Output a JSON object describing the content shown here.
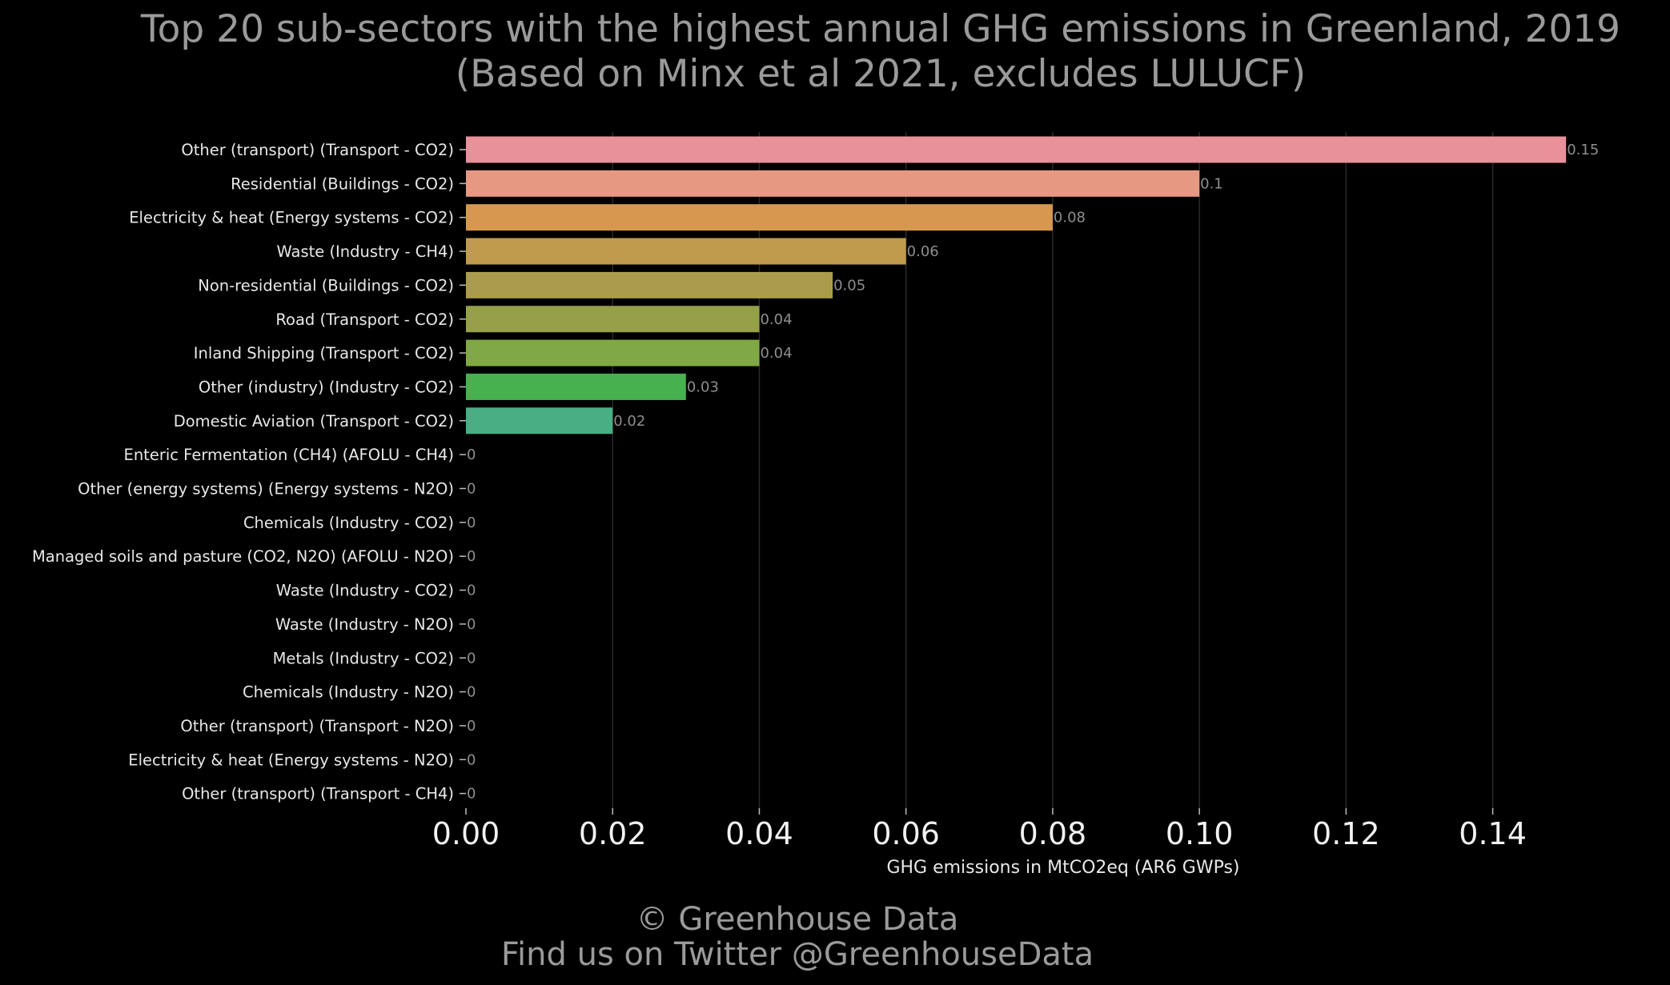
{
  "title_line1": "Top 20 sub-sectors with the highest annual GHG emissions in Greenland, 2019",
  "title_line2": "(Based on Minx et al 2021, excludes LULUCF)",
  "footer_line1": "© Greenhouse Data",
  "footer_line2": "Find us on Twitter @GreenhouseData",
  "chart_data": {
    "type": "bar",
    "orientation": "horizontal",
    "title": "Top 20 sub-sectors with the highest annual GHG emissions in Greenland, 2019 (Based on Minx et al 2021, excludes LULUCF)",
    "xlabel": "GHG emissions in MtCO2eq (AR6 GWPs)",
    "ylabel": "",
    "xlim": [
      0,
      0.155
    ],
    "grid": true,
    "x_ticks": [
      0,
      0.02,
      0.04,
      0.06,
      0.08,
      0.1,
      0.12,
      0.14
    ],
    "x_tick_labels": [
      "0.00",
      "0.02",
      "0.04",
      "0.06",
      "0.08",
      "0.10",
      "0.12",
      "0.14"
    ],
    "categories": [
      "Other (transport) (Transport - CO2)",
      "Residential (Buildings - CO2)",
      "Electricity & heat (Energy systems - CO2)",
      "Waste (Industry - CH4)",
      "Non-residential (Buildings - CO2)",
      "Road (Transport - CO2)",
      "Inland Shipping (Transport - CO2)",
      "Other (industry) (Industry - CO2)",
      "Domestic Aviation (Transport - CO2)",
      "Enteric Fermentation (CH4) (AFOLU - CH4)",
      "Other (energy systems) (Energy systems - N2O)",
      "Chemicals (Industry - CO2)",
      "Managed soils and pasture (CO2, N2O) (AFOLU - N2O)",
      "Waste (Industry - CO2)",
      "Waste (Industry - N2O)",
      "Metals (Industry - CO2)",
      "Chemicals (Industry - N2O)",
      "Other (transport) (Transport - N2O)",
      "Electricity & heat (Energy systems - N2O)",
      "Other (transport) (Transport - CH4)"
    ],
    "values": [
      0.15,
      0.1,
      0.08,
      0.06,
      0.05,
      0.04,
      0.04,
      0.03,
      0.02,
      0,
      0,
      0,
      0,
      0,
      0,
      0,
      0,
      0,
      0,
      0
    ],
    "value_labels": [
      "0.15",
      "0.1",
      "0.08",
      "0.06",
      "0.05",
      "0.04",
      "0.04",
      "0.03",
      "0.02",
      "0",
      "0",
      "0",
      "0",
      "0",
      "0",
      "0",
      "0",
      "0",
      "0",
      "0"
    ],
    "colors": [
      "#e8919b",
      "#e79883",
      "#d6984f",
      "#c19b4d",
      "#aa9c4a",
      "#96a047",
      "#80a845",
      "#47b04f",
      "#48ae84",
      "#48ad95",
      "#48aca6",
      "#46a9b5",
      "#49a5c4",
      "#6d9ed9",
      "#9493e5",
      "#b286e8",
      "#cc7ee3",
      "#e17bd4",
      "#e881bb",
      "#e98aab"
    ]
  }
}
